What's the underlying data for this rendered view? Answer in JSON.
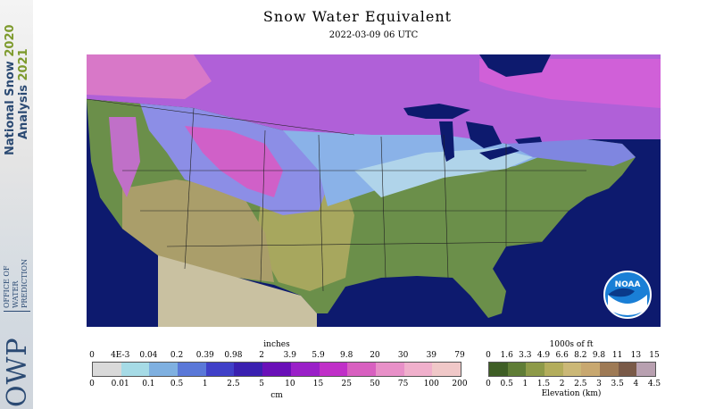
{
  "sidebar": {
    "nsa_line1": "National Snow ",
    "nsa_year1": "2020",
    "nsa_line2": "Analysis ",
    "nsa_year2": "2021",
    "owp_logo": "OWP",
    "owp_line1": "OFFICE OF",
    "owp_line2": "WATER",
    "owp_line3": "PREDICTION"
  },
  "header": {
    "title": "Snow Water Equivalent",
    "datetime": "2022-03-09 06 UTC"
  },
  "map": {
    "logo_text": "NOAA"
  },
  "swe_legend": {
    "top_unit": "inches",
    "bottom_unit": "cm",
    "inch_ticks": [
      "0",
      "4E-3",
      "0.04",
      "0.2",
      "0.39",
      "0.98",
      "2",
      "3.9",
      "5.9",
      "9.8",
      "20",
      "30",
      "39",
      "79"
    ],
    "cm_ticks": [
      "0",
      "0.01",
      "0.1",
      "0.5",
      "1",
      "2.5",
      "5",
      "10",
      "15",
      "25",
      "50",
      "75",
      "100",
      "200"
    ],
    "colors": [
      "#d9d9d9",
      "#a6dbe6",
      "#7fb0e0",
      "#5a78d8",
      "#4040c8",
      "#3a20b0",
      "#6a10b8",
      "#9a20c8",
      "#c030c8",
      "#d860c0",
      "#e890c8",
      "#f0b0cc",
      "#f0c8c8"
    ]
  },
  "elev_legend": {
    "top_unit": "1000s of ft",
    "bottom_unit": "Elevation (km)",
    "ft_ticks": [
      "0",
      "1.6",
      "3.3",
      "4.9",
      "6.6",
      "8.2",
      "9.8",
      "11",
      "13",
      "15"
    ],
    "km_ticks": [
      "0",
      "0.5",
      "1",
      "1.5",
      "2",
      "2.5",
      "3",
      "3.5",
      "4",
      "4.5"
    ],
    "colors": [
      "#3e5e25",
      "#5f7d36",
      "#8d9a48",
      "#b3ad5c",
      "#cbb877",
      "#c8a870",
      "#9e7a55",
      "#7a5a48",
      "#b8a0b0"
    ]
  }
}
